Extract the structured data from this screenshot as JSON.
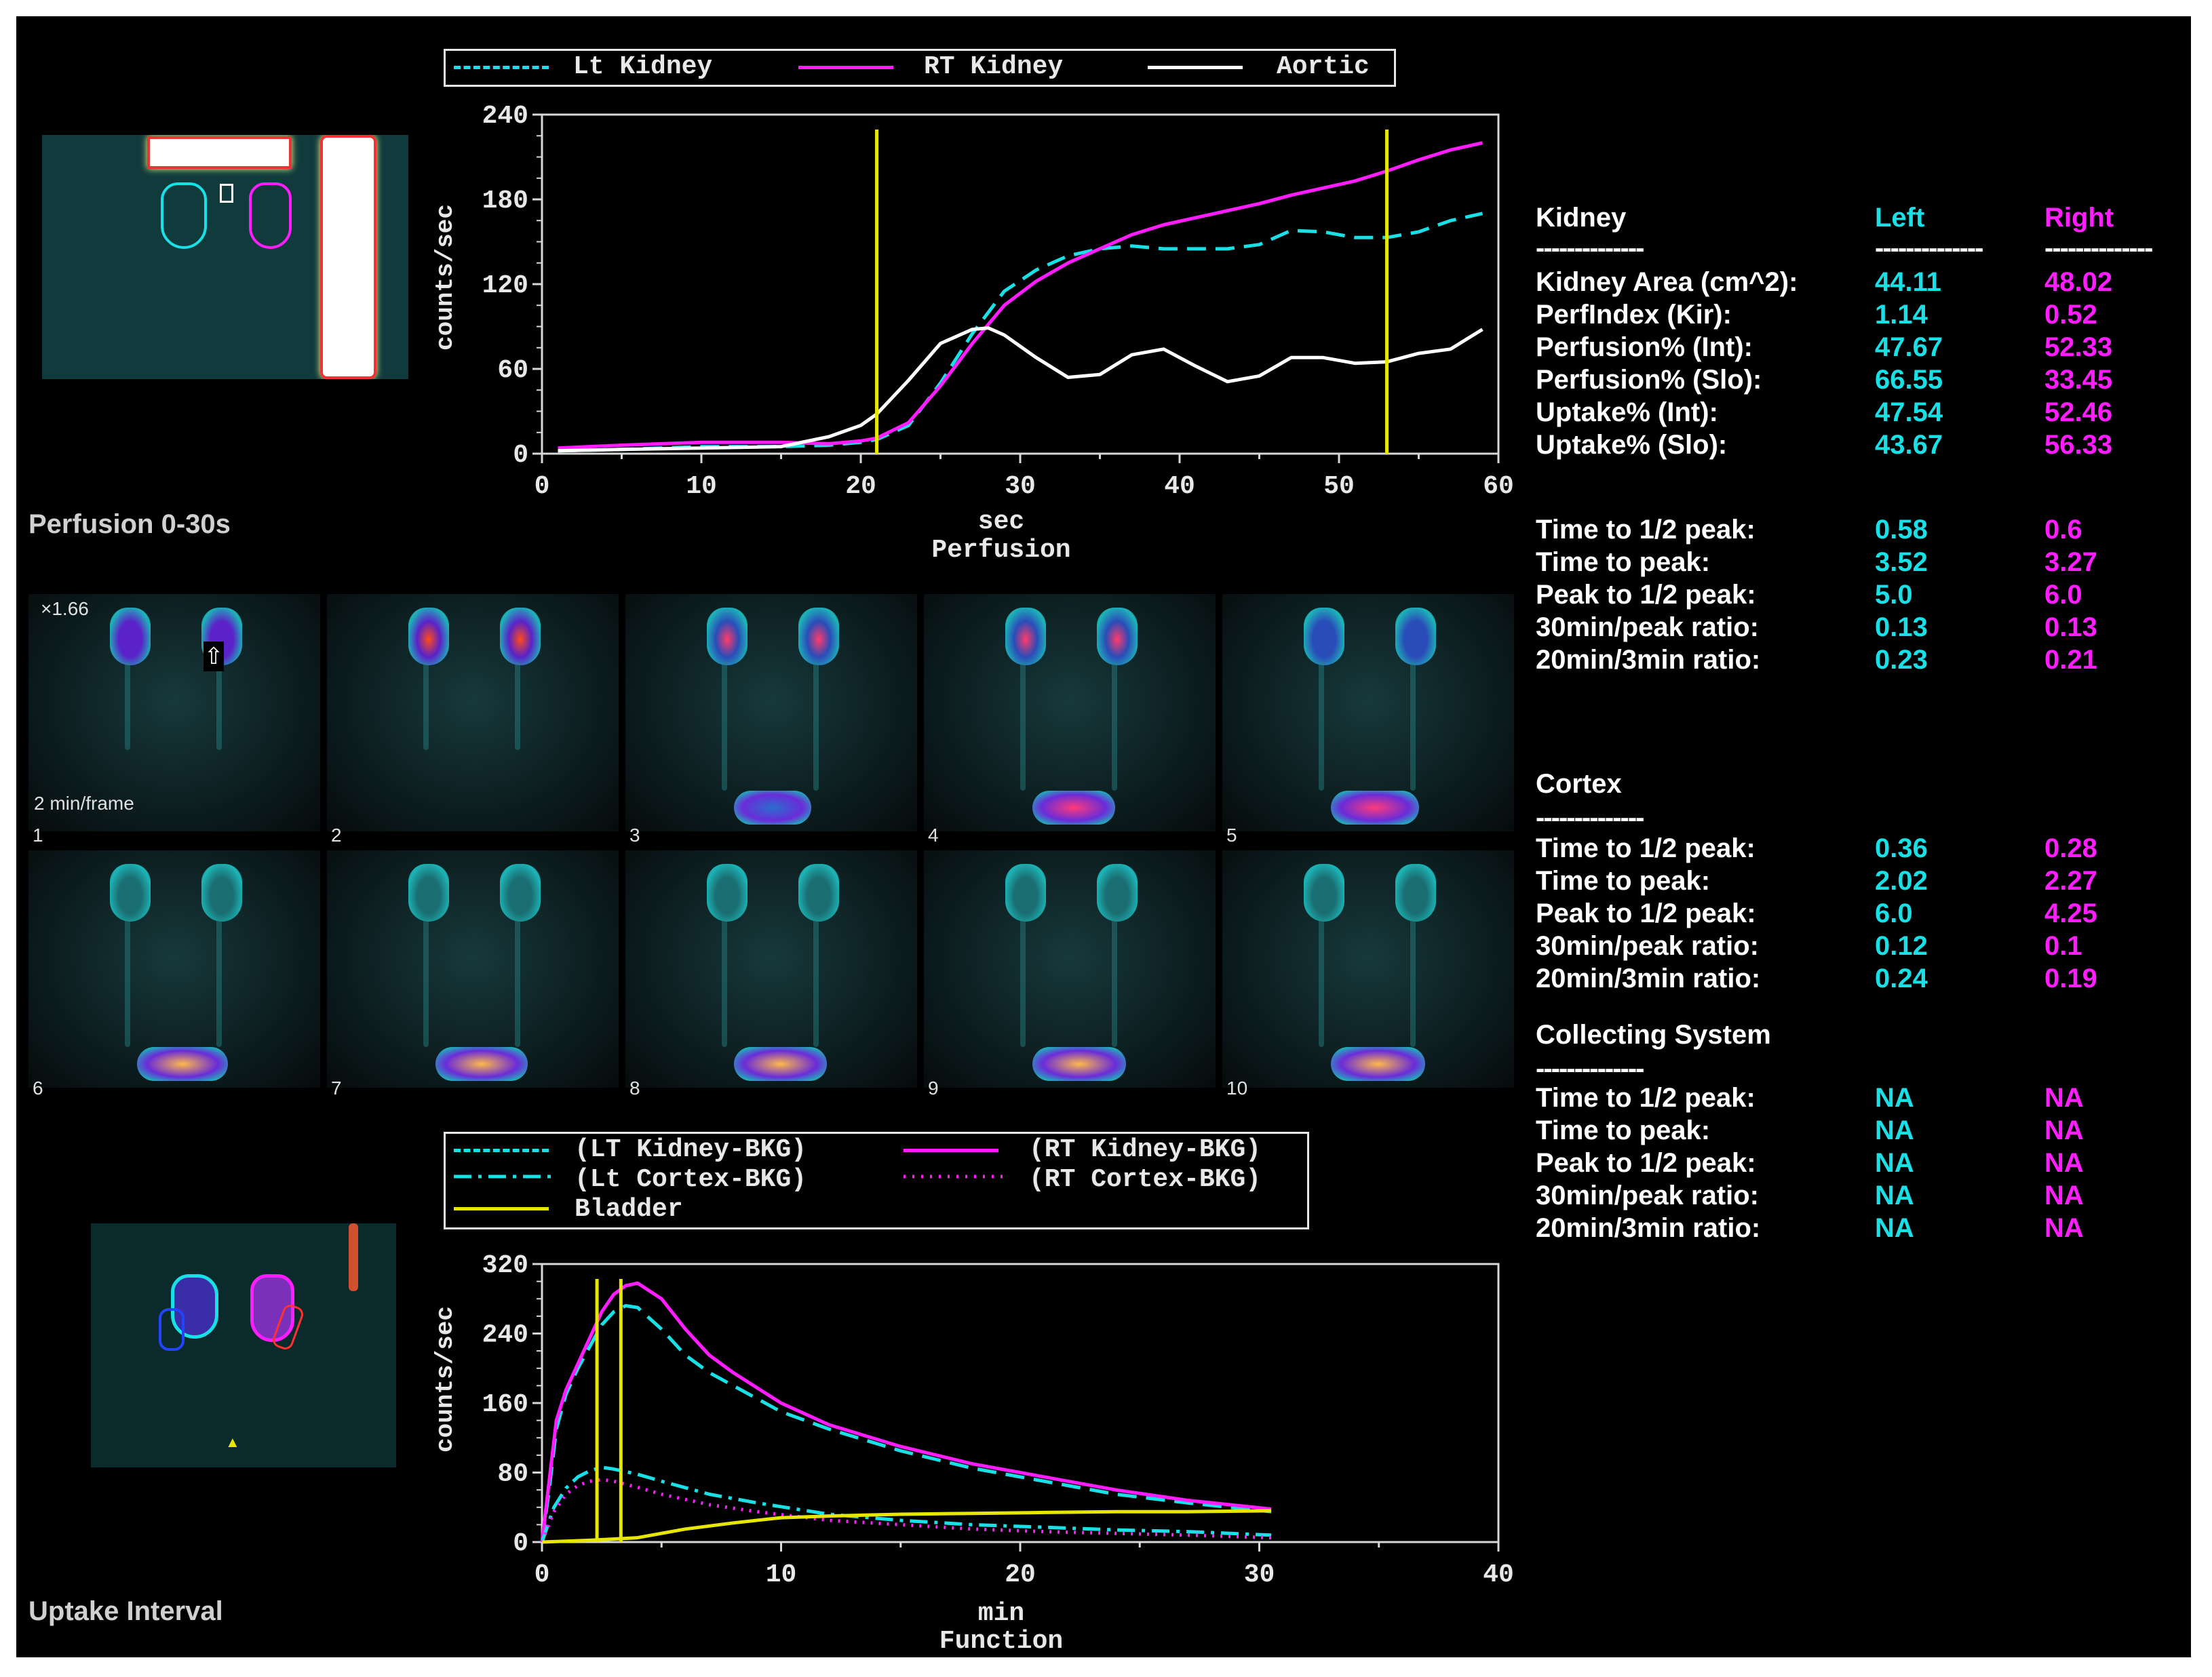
{
  "perfusion_chart": {
    "legend": {
      "lt": "Lt Kidney",
      "rt": "RT Kidney",
      "aortic": "Aortic"
    },
    "ylabel": "counts/sec",
    "xlabel": "sec",
    "subtitle": "Perfusion",
    "caption": "Perfusion 0-30s"
  },
  "function_chart": {
    "legend": {
      "lt_kidney": "(LT Kidney-BKG)",
      "rt_kidney": "(RT Kidney-BKG)",
      "lt_cortex": "(Lt Cortex-BKG)",
      "rt_cortex": "(RT Cortex-BKG)",
      "bladder": "Bladder"
    },
    "ylabel": "counts/sec",
    "xlabel": "min",
    "subtitle": "Function",
    "caption": "Uptake Interval"
  },
  "frames": {
    "zoom": "×1.66",
    "rate": "2 min/frame",
    "numbers": [
      "1",
      "2",
      "3",
      "4",
      "5",
      "6",
      "7",
      "8",
      "9",
      "10"
    ]
  },
  "table": {
    "kidney": {
      "header": "Kidney",
      "left": "Left",
      "right": "Right",
      "sep": "--------------",
      "rows": [
        {
          "label": "Kidney Area (cm^2):",
          "left": "44.11",
          "right": "48.02"
        },
        {
          "label": "PerfIndex (Kir):",
          "left": "1.14",
          "right": "0.52"
        },
        {
          "label": "Perfusion% (Int):",
          "left": "47.67",
          "right": "52.33"
        },
        {
          "label": "Perfusion% (Slo):",
          "left": "66.55",
          "right": "33.45"
        },
        {
          "label": "Uptake% (Int):",
          "left": "47.54",
          "right": "52.46"
        },
        {
          "label": "Uptake% (Slo):",
          "left": "43.67",
          "right": "56.33"
        }
      ],
      "rows2": [
        {
          "label": "Time to 1/2 peak:",
          "left": "0.58",
          "right": "0.6"
        },
        {
          "label": "Time to peak:",
          "left": "3.52",
          "right": "3.27"
        },
        {
          "label": "Peak to 1/2 peak:",
          "left": "5.0",
          "right": "6.0"
        },
        {
          "label": "30min/peak ratio:",
          "left": "0.13",
          "right": "0.13"
        },
        {
          "label": "20min/3min ratio:",
          "left": "0.23",
          "right": "0.21"
        }
      ]
    },
    "cortex": {
      "header": "Cortex",
      "sep": "--------------",
      "rows": [
        {
          "label": "Time to 1/2 peak:",
          "left": "0.36",
          "right": "0.28"
        },
        {
          "label": "Time to peak:",
          "left": "2.02",
          "right": "2.27"
        },
        {
          "label": "Peak to 1/2 peak:",
          "left": "6.0",
          "right": "4.25"
        },
        {
          "label": "30min/peak ratio:",
          "left": "0.12",
          "right": "0.1"
        },
        {
          "label": "20min/3min ratio:",
          "left": "0.24",
          "right": "0.19"
        }
      ]
    },
    "collecting": {
      "header": "Collecting System",
      "sep": "--------------",
      "rows": [
        {
          "label": "Time to 1/2 peak:",
          "left": "NA",
          "right": "NA"
        },
        {
          "label": "Time to peak:",
          "left": "NA",
          "right": "NA"
        },
        {
          "label": "Peak to 1/2 peak:",
          "left": "NA",
          "right": "NA"
        },
        {
          "label": "30min/peak ratio:",
          "left": "NA",
          "right": "NA"
        },
        {
          "label": "20min/3min ratio:",
          "left": "NA",
          "right": "NA"
        }
      ]
    }
  },
  "colors": {
    "left": "#19e0e6",
    "right": "#ff1cff",
    "aortic": "#ffffff",
    "bladder": "#e6e600",
    "marker": "#e6e600"
  },
  "chart_data": [
    {
      "type": "line",
      "ylabel": "counts/sec",
      "xlabel": "sec",
      "xlim": [
        0,
        60
      ],
      "ylim": [
        0,
        240
      ],
      "xticks": [
        0,
        10,
        20,
        30,
        40,
        50,
        60
      ],
      "yticks": [
        0,
        60,
        120,
        180,
        240
      ],
      "markers_x": [
        21,
        53
      ],
      "series": [
        {
          "name": "Lt Kidney",
          "style": "dashed",
          "color": "#19e0e6",
          "x": [
            1,
            5,
            10,
            15,
            18,
            20,
            21,
            23,
            25,
            27,
            29,
            31,
            33,
            35,
            37,
            39,
            41,
            43,
            45,
            47,
            49,
            51,
            53,
            55,
            57,
            59
          ],
          "y": [
            2,
            3,
            5,
            5,
            6,
            8,
            10,
            20,
            50,
            85,
            115,
            130,
            140,
            145,
            147,
            145,
            145,
            145,
            148,
            158,
            157,
            153,
            153,
            157,
            165,
            170
          ]
        },
        {
          "name": "RT Kidney",
          "style": "solid",
          "color": "#ff1cff",
          "x": [
            1,
            5,
            10,
            15,
            18,
            20,
            21,
            23,
            25,
            27,
            29,
            31,
            33,
            35,
            37,
            39,
            41,
            43,
            45,
            47,
            49,
            51,
            53,
            55,
            57,
            59
          ],
          "y": [
            4,
            6,
            8,
            8,
            7,
            9,
            11,
            22,
            48,
            78,
            105,
            122,
            135,
            145,
            155,
            162,
            167,
            172,
            177,
            183,
            188,
            193,
            200,
            208,
            215,
            220
          ]
        },
        {
          "name": "Aortic",
          "style": "solid",
          "color": "#ffffff",
          "x": [
            1,
            5,
            10,
            15,
            18,
            20,
            21,
            23,
            25,
            27,
            28,
            29,
            31,
            33,
            35,
            37,
            39,
            41,
            43,
            45,
            47,
            49,
            51,
            53,
            55,
            57,
            59
          ],
          "y": [
            2,
            3,
            4,
            5,
            12,
            20,
            28,
            52,
            78,
            88,
            89,
            84,
            68,
            54,
            56,
            70,
            74,
            62,
            51,
            55,
            68,
            68,
            64,
            65,
            71,
            74,
            88
          ]
        }
      ]
    },
    {
      "type": "line",
      "ylabel": "counts/sec",
      "xlabel": "min",
      "xlim": [
        0,
        40
      ],
      "ylim": [
        0,
        320
      ],
      "xticks": [
        0,
        10,
        20,
        30,
        40
      ],
      "yticks": [
        0,
        80,
        160,
        240,
        320
      ],
      "markers_x": [
        2.3,
        3.3
      ],
      "series": [
        {
          "name": "(LT Kidney-BKG)",
          "style": "dashed",
          "color": "#19e0e6",
          "x": [
            0,
            0.3,
            0.6,
            1,
            1.5,
            2,
            2.5,
            3,
            3.5,
            4,
            5,
            6,
            7,
            8,
            10,
            12,
            15,
            18,
            21,
            24,
            27,
            30.5
          ],
          "y": [
            0,
            60,
            130,
            170,
            200,
            225,
            250,
            265,
            272,
            270,
            245,
            215,
            195,
            180,
            150,
            130,
            105,
            85,
            70,
            55,
            45,
            35
          ]
        },
        {
          "name": "(RT Kidney-BKG)",
          "style": "solid",
          "color": "#ff1cff",
          "x": [
            0,
            0.3,
            0.6,
            1,
            1.5,
            2,
            2.5,
            3,
            3.5,
            4,
            5,
            6,
            7,
            8,
            10,
            12,
            15,
            18,
            21,
            24,
            27,
            30.5
          ],
          "y": [
            0,
            70,
            140,
            175,
            205,
            235,
            265,
            285,
            295,
            298,
            280,
            245,
            215,
            195,
            160,
            135,
            110,
            90,
            75,
            60,
            48,
            38
          ]
        },
        {
          "name": "(Lt Cortex-BKG)",
          "style": "dashdot",
          "color": "#19e0e6",
          "x": [
            0,
            0.5,
            1,
            1.5,
            2,
            2.5,
            3,
            4,
            5,
            7,
            9,
            12,
            15,
            18,
            21,
            24,
            27,
            30.5
          ],
          "y": [
            0,
            40,
            62,
            75,
            82,
            86,
            84,
            78,
            70,
            55,
            45,
            32,
            25,
            20,
            17,
            14,
            12,
            8
          ]
        },
        {
          "name": "(RT Cortex-BKG)",
          "style": "dotted",
          "color": "#ff1cff",
          "x": [
            0,
            0.5,
            1,
            1.5,
            2,
            2.5,
            3,
            4,
            5,
            7,
            9,
            12,
            15,
            18,
            21,
            24,
            27,
            30.5
          ],
          "y": [
            0,
            35,
            55,
            65,
            70,
            72,
            70,
            63,
            55,
            43,
            35,
            25,
            20,
            15,
            12,
            10,
            8,
            5
          ]
        },
        {
          "name": "Bladder",
          "style": "solid",
          "color": "#e6e600",
          "x": [
            0,
            2,
            4,
            6,
            8,
            10,
            12,
            15,
            18,
            21,
            24,
            27,
            30.5
          ],
          "y": [
            0,
            2,
            5,
            15,
            22,
            28,
            30,
            32,
            33,
            34,
            35,
            35,
            36
          ]
        }
      ]
    }
  ]
}
